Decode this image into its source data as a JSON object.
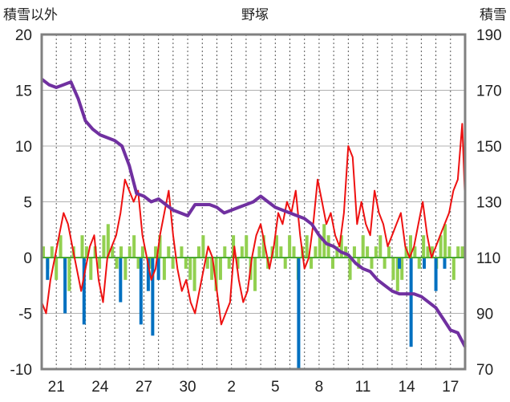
{
  "chart_data": {
    "type": "line",
    "title": "野塚",
    "left_axis_label": "積雪以外",
    "right_axis_label": "積雪",
    "left_ylim": [
      -10,
      20
    ],
    "left_ticks": [
      "-10",
      "-5",
      "0",
      "5",
      "10",
      "15",
      "20"
    ],
    "right_ylim": [
      70,
      190
    ],
    "right_ticks": [
      "70",
      "90",
      "110",
      "130",
      "150",
      "170",
      "190"
    ],
    "x_range": [
      0,
      29
    ],
    "x_ticks": [
      {
        "pos": 1,
        "label": "21"
      },
      {
        "pos": 4,
        "label": "24"
      },
      {
        "pos": 7,
        "label": "27"
      },
      {
        "pos": 10,
        "label": "30"
      },
      {
        "pos": 13,
        "label": "2"
      },
      {
        "pos": 16,
        "label": "5"
      },
      {
        "pos": 19,
        "label": "8"
      },
      {
        "pos": 22,
        "label": "11"
      },
      {
        "pos": 25,
        "label": "14"
      },
      {
        "pos": 28,
        "label": "17"
      }
    ],
    "grid": true,
    "colors": {
      "temperature": "#ee1111",
      "snow_depth": "#7030a0",
      "green_bars": "#92d050",
      "blue_bars": "#0070c0",
      "zero_line": "#4aa832",
      "frame": "#808080"
    },
    "series": [
      {
        "key": "temperature",
        "axis": "left",
        "x": [
          0,
          0.3,
          0.6,
          0.9,
          1.2,
          1.5,
          1.8,
          2.1,
          2.4,
          2.7,
          3.0,
          3.3,
          3.6,
          3.9,
          4.2,
          4.5,
          4.8,
          5.1,
          5.4,
          5.7,
          6.0,
          6.3,
          6.6,
          6.9,
          7.2,
          7.5,
          7.8,
          8.1,
          8.4,
          8.7,
          9.0,
          9.3,
          9.6,
          9.9,
          10.2,
          10.5,
          10.8,
          11.1,
          11.4,
          11.7,
          12.0,
          12.3,
          12.6,
          12.9,
          13.2,
          13.5,
          13.8,
          14.1,
          14.4,
          14.7,
          15.0,
          15.3,
          15.6,
          15.9,
          16.2,
          16.5,
          16.8,
          17.1,
          17.4,
          17.7,
          18.0,
          18.3,
          18.6,
          18.9,
          19.2,
          19.5,
          19.8,
          20.1,
          20.4,
          20.7,
          21.0,
          21.3,
          21.6,
          21.9,
          22.2,
          22.5,
          22.8,
          23.1,
          23.4,
          23.7,
          24.0,
          24.3,
          24.6,
          24.9,
          25.2,
          25.5,
          25.8,
          26.1,
          26.4,
          26.7,
          27.0,
          27.3,
          27.6,
          27.9,
          28.2,
          28.5,
          28.8,
          29.0
        ],
        "y": [
          -4,
          -5,
          -2,
          0,
          2,
          4,
          3,
          1,
          -1,
          -3,
          -1,
          1,
          2,
          -2,
          -4,
          0,
          1,
          2,
          4,
          7,
          6,
          5,
          6,
          2,
          0,
          -2,
          -1,
          2,
          4,
          6,
          2,
          -1,
          -3,
          -2,
          -4,
          -5,
          -3,
          -1,
          1,
          0,
          -3,
          -6,
          -5,
          -4,
          1,
          -2,
          -4,
          -3,
          0,
          2,
          3,
          1,
          -1,
          1,
          4,
          3,
          5,
          4,
          6,
          2,
          -1,
          0,
          3,
          7,
          5,
          3,
          4,
          2,
          1,
          4,
          10,
          9,
          3,
          5,
          3,
          2,
          6,
          4,
          3,
          1,
          2,
          3,
          4,
          1,
          0,
          1,
          3,
          5,
          2,
          0,
          1,
          2,
          3,
          4,
          6,
          7,
          12,
          5
        ]
      },
      {
        "key": "snow_depth",
        "axis": "right",
        "x": [
          0,
          0.5,
          1.0,
          1.5,
          2.0,
          2.5,
          3.0,
          3.5,
          4.0,
          4.5,
          5.0,
          5.5,
          6.0,
          6.5,
          7.0,
          7.5,
          8.0,
          8.5,
          9.0,
          9.5,
          10.0,
          10.5,
          11.0,
          11.5,
          12.0,
          12.5,
          13.0,
          13.5,
          14.0,
          14.5,
          15.0,
          15.5,
          16.0,
          16.5,
          17.0,
          17.5,
          18.0,
          18.5,
          19.0,
          19.5,
          20.0,
          20.5,
          21.0,
          21.5,
          22.0,
          22.5,
          23.0,
          23.5,
          24.0,
          24.5,
          25.0,
          25.5,
          26.0,
          26.5,
          27.0,
          27.5,
          28.0,
          28.5,
          29.0
        ],
        "y": [
          174,
          172,
          171,
          172,
          173,
          167,
          159,
          156,
          154,
          153,
          152,
          150,
          143,
          133,
          132,
          130,
          131,
          129,
          127,
          126,
          125,
          129,
          129,
          129,
          128,
          126,
          127,
          128,
          129,
          130,
          132,
          130,
          128,
          127,
          126,
          125,
          124,
          122,
          118,
          115,
          114,
          112,
          111,
          108,
          106,
          105,
          102,
          100,
          98,
          97,
          97,
          97,
          96,
          94,
          92,
          88,
          84,
          83,
          78
        ]
      },
      {
        "key": "green_bars",
        "axis": "left",
        "values": [
          1,
          -1,
          1,
          -2,
          2,
          -1,
          -3,
          1,
          0,
          2,
          1,
          -2,
          1,
          -1,
          2,
          3,
          1,
          -1,
          1,
          -2,
          1,
          2,
          -1,
          1,
          0,
          -1,
          1,
          2,
          -2,
          1,
          -1,
          0,
          1,
          -1,
          -2,
          -3,
          1,
          2,
          -1,
          -2,
          -3,
          -2,
          1,
          -1,
          2,
          -1,
          1,
          2,
          -2,
          -3,
          1,
          2,
          -1,
          1,
          2,
          1,
          -1,
          2,
          1,
          -2,
          1,
          2,
          -1,
          1,
          2,
          3,
          2,
          -1,
          1,
          2,
          1,
          -2,
          1,
          -1,
          2,
          1,
          -1,
          1,
          2,
          -1,
          1,
          -2,
          -3,
          -2,
          1,
          2,
          1,
          -1,
          2,
          1,
          1,
          -1,
          2,
          3,
          1,
          -2,
          1,
          1
        ]
      },
      {
        "key": "blue_bars",
        "axis": "left",
        "bars": [
          [
            0.4,
            -2
          ],
          [
            1.6,
            -5
          ],
          [
            2.9,
            -6
          ],
          [
            5.4,
            -4
          ],
          [
            6.8,
            -6
          ],
          [
            7.3,
            -3
          ],
          [
            7.6,
            -7
          ],
          [
            8.0,
            -2
          ],
          [
            17.6,
            -10
          ],
          [
            24.5,
            -1
          ],
          [
            25.3,
            -8
          ],
          [
            26.2,
            -1
          ],
          [
            27.0,
            -3
          ],
          [
            27.6,
            -1
          ]
        ]
      }
    ]
  }
}
